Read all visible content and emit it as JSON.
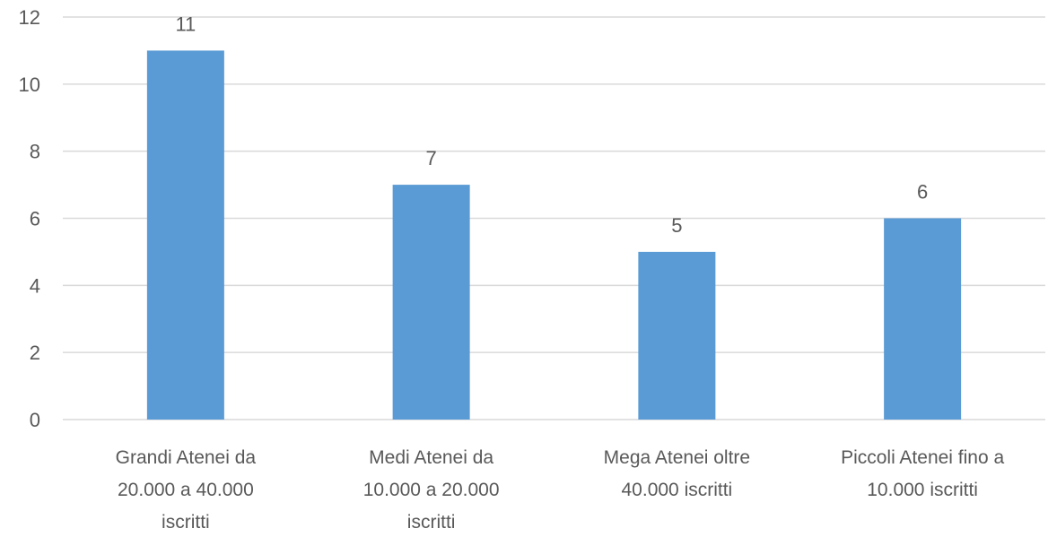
{
  "chart_data": {
    "type": "bar",
    "categories": [
      [
        "Grandi Atenei  da",
        "20.000 a 40.000",
        "iscritti"
      ],
      [
        "Medi Atenei da",
        "10.000 a 20.000",
        "iscritti"
      ],
      [
        "Mega Atenei  oltre",
        "40.000 iscritti"
      ],
      [
        "Piccoli Atenei fino a",
        "10.000 iscritti"
      ]
    ],
    "values": [
      11,
      7,
      5,
      6
    ],
    "data_labels": [
      "11",
      "7",
      "5",
      "6"
    ],
    "title": "",
    "xlabel": "",
    "ylabel": "",
    "ylim": [
      0,
      12
    ],
    "yticks": [
      0,
      2,
      4,
      6,
      8,
      10,
      12
    ],
    "ytick_labels": [
      "0",
      "2",
      "4",
      "6",
      "8",
      "10",
      "12"
    ],
    "grid": true,
    "legend": false,
    "colors": {
      "bar": "#5b9bd5",
      "grid": "#d9d9d9",
      "text": "#595959"
    }
  }
}
